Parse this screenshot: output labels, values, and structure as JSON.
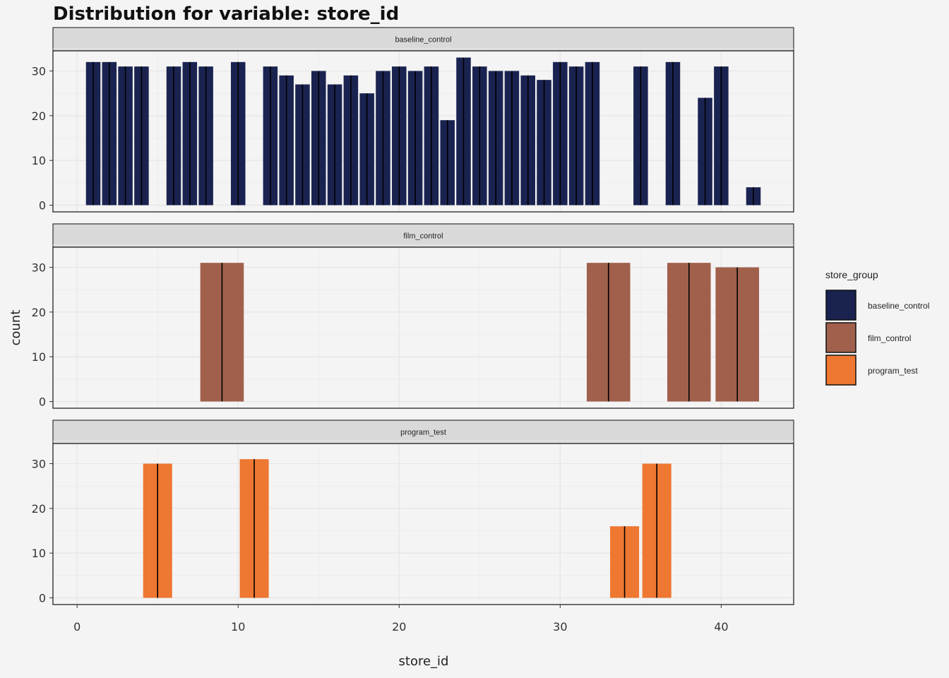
{
  "chart_data": {
    "type": "bar",
    "title": "Distribution for variable: store_id",
    "xlabel": "store_id",
    "ylabel": "count",
    "xlim": [
      -1.5,
      44.5
    ],
    "xticks": [
      0,
      10,
      20,
      30,
      40
    ],
    "ylim": [
      -1.5,
      34.5
    ],
    "yticks": [
      0,
      10,
      20,
      30
    ],
    "grid": true,
    "legend": {
      "title": "store_group",
      "position": "right",
      "entries": [
        "baseline_control",
        "film_control",
        "program_test"
      ]
    },
    "colors": {
      "baseline_control": "#1a2350",
      "film_control": "#a0604c",
      "program_test": "#ee7731"
    },
    "facets": [
      {
        "name": "baseline_control",
        "bar_width": 0.9,
        "bars": [
          {
            "x": 1,
            "y": 32
          },
          {
            "x": 2,
            "y": 32
          },
          {
            "x": 3,
            "y": 31
          },
          {
            "x": 4,
            "y": 31
          },
          {
            "x": 6,
            "y": 31
          },
          {
            "x": 7,
            "y": 32
          },
          {
            "x": 8,
            "y": 31
          },
          {
            "x": 10,
            "y": 32
          },
          {
            "x": 12,
            "y": 31
          },
          {
            "x": 13,
            "y": 29
          },
          {
            "x": 14,
            "y": 27
          },
          {
            "x": 15,
            "y": 30
          },
          {
            "x": 16,
            "y": 27
          },
          {
            "x": 17,
            "y": 29
          },
          {
            "x": 18,
            "y": 25
          },
          {
            "x": 19,
            "y": 30
          },
          {
            "x": 20,
            "y": 31
          },
          {
            "x": 21,
            "y": 30
          },
          {
            "x": 22,
            "y": 31
          },
          {
            "x": 23,
            "y": 19
          },
          {
            "x": 24,
            "y": 33
          },
          {
            "x": 25,
            "y": 31
          },
          {
            "x": 26,
            "y": 30
          },
          {
            "x": 27,
            "y": 30
          },
          {
            "x": 28,
            "y": 29
          },
          {
            "x": 29,
            "y": 28
          },
          {
            "x": 30,
            "y": 32
          },
          {
            "x": 31,
            "y": 31
          },
          {
            "x": 32,
            "y": 32
          },
          {
            "x": 35,
            "y": 31
          },
          {
            "x": 37,
            "y": 32
          },
          {
            "x": 39,
            "y": 24
          },
          {
            "x": 40,
            "y": 31
          },
          {
            "x": 42,
            "y": 4
          }
        ]
      },
      {
        "name": "film_control",
        "bar_width": 2.7,
        "bars": [
          {
            "x": 9,
            "y": 31
          },
          {
            "x": 33,
            "y": 31
          },
          {
            "x": 38,
            "y": 31
          },
          {
            "x": 41,
            "y": 30
          }
        ]
      },
      {
        "name": "program_test",
        "bar_width": 1.8,
        "bars": [
          {
            "x": 5,
            "y": 30
          },
          {
            "x": 11,
            "y": 31
          },
          {
            "x": 34,
            "y": 16
          },
          {
            "x": 36,
            "y": 30
          }
        ]
      }
    ]
  }
}
